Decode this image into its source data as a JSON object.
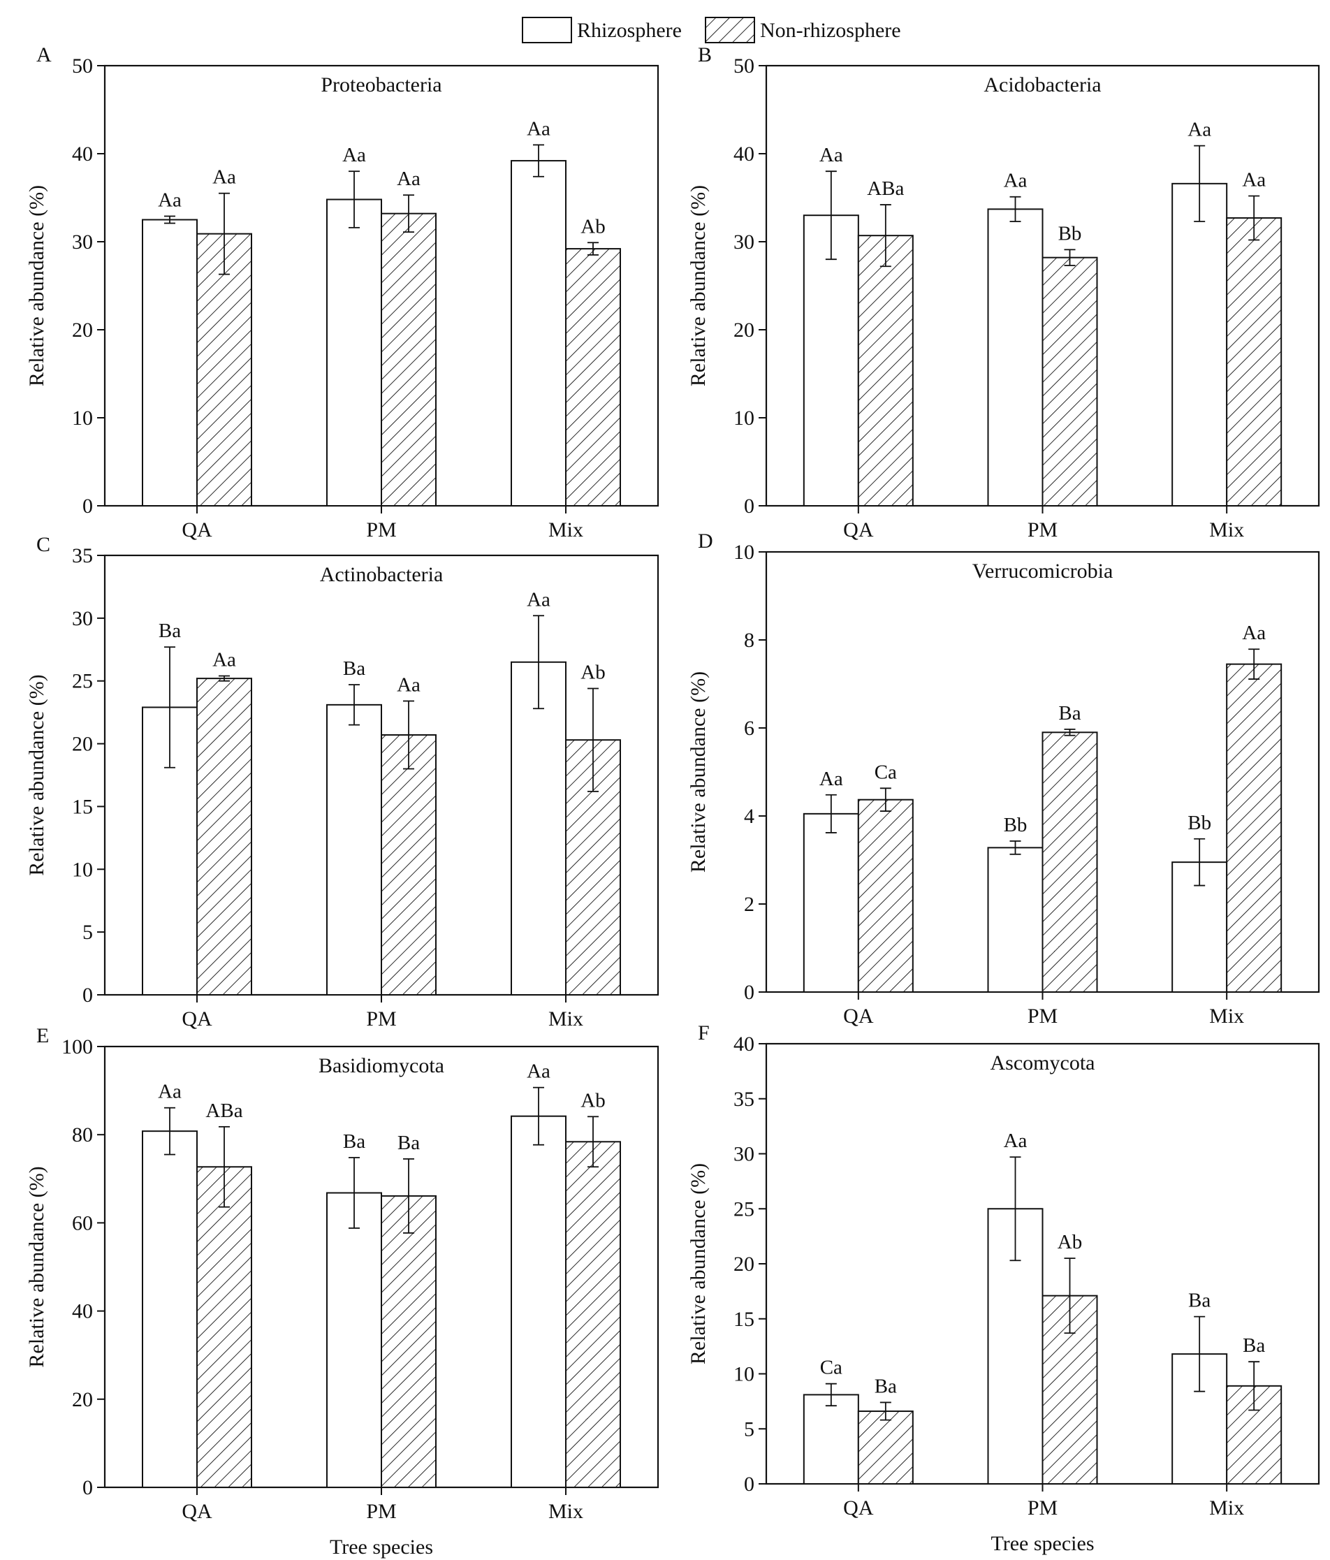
{
  "legend": {
    "rhizosphere": "Rhizosphere",
    "non_rhizosphere": "Non-rhizosphere"
  },
  "shared_xlabel": "Tree species",
  "colors": {
    "line": "#111111",
    "rhizosphere_fill": "#ffffff",
    "hatch": "#111111"
  },
  "chart_data": [
    {
      "panel": "A",
      "type": "bar",
      "title": "Proteobacteria",
      "ylabel": "Relative abundance (%)",
      "xlabel": "",
      "ylim": [
        0,
        50
      ],
      "yticks": [
        0,
        10,
        20,
        30,
        40,
        50
      ],
      "categories": [
        "QA",
        "PM",
        "Mix"
      ],
      "series": [
        {
          "name": "Rhizosphere",
          "values": [
            32.5,
            34.8,
            39.2
          ],
          "errors": [
            0.4,
            3.2,
            1.8
          ],
          "labels": [
            "Aa",
            "Aa",
            "Aa"
          ]
        },
        {
          "name": "Non-rhizosphere",
          "values": [
            30.9,
            33.2,
            29.2
          ],
          "errors": [
            4.6,
            2.1,
            0.7
          ],
          "labels": [
            "Aa",
            "Aa",
            "Ab"
          ]
        }
      ]
    },
    {
      "panel": "B",
      "type": "bar",
      "title": "Acidobacteria",
      "ylabel": "Relative abundance (%)",
      "xlabel": "",
      "ylim": [
        0,
        50
      ],
      "yticks": [
        0,
        10,
        20,
        30,
        40,
        50
      ],
      "categories": [
        "QA",
        "PM",
        "Mix"
      ],
      "series": [
        {
          "name": "Rhizosphere",
          "values": [
            33.0,
            33.7,
            36.6
          ],
          "errors": [
            5.0,
            1.4,
            4.3
          ],
          "labels": [
            "Aa",
            "Aa",
            "Aa"
          ]
        },
        {
          "name": "Non-rhizosphere",
          "values": [
            30.7,
            28.2,
            32.7
          ],
          "errors": [
            3.5,
            0.9,
            2.5
          ],
          "labels": [
            "ABa",
            "Bb",
            "Aa"
          ]
        }
      ]
    },
    {
      "panel": "C",
      "type": "bar",
      "title": "Actinobacteria",
      "ylabel": "Relative abundance (%)",
      "xlabel": "",
      "ylim": [
        0,
        35
      ],
      "yticks": [
        0,
        5,
        10,
        15,
        20,
        25,
        30,
        35
      ],
      "categories": [
        "QA",
        "PM",
        "Mix"
      ],
      "series": [
        {
          "name": "Rhizosphere",
          "values": [
            22.9,
            23.1,
            26.5
          ],
          "errors": [
            4.8,
            1.6,
            3.7
          ],
          "labels": [
            "Ba",
            "Ba",
            "Aa"
          ]
        },
        {
          "name": "Non-rhizosphere",
          "values": [
            25.2,
            20.7,
            20.3
          ],
          "errors": [
            0.2,
            2.7,
            4.1
          ],
          "labels": [
            "Aa",
            "Aa",
            "Ab"
          ]
        }
      ]
    },
    {
      "panel": "D",
      "type": "bar",
      "title": "Verrucomicrobia",
      "ylabel": "Relative abundance (%)",
      "xlabel": "",
      "ylim": [
        0,
        10
      ],
      "yticks": [
        0,
        2,
        4,
        6,
        8,
        10
      ],
      "categories": [
        "QA",
        "PM",
        "Mix"
      ],
      "series": [
        {
          "name": "Rhizosphere",
          "values": [
            4.05,
            3.28,
            2.95
          ],
          "errors": [
            0.43,
            0.15,
            0.53
          ],
          "labels": [
            "Aa",
            "Bb",
            "Bb"
          ]
        },
        {
          "name": "Non-rhizosphere",
          "values": [
            4.37,
            5.9,
            7.45
          ],
          "errors": [
            0.26,
            0.07,
            0.34
          ],
          "labels": [
            "Ca",
            "Ba",
            "Aa"
          ]
        }
      ]
    },
    {
      "panel": "E",
      "type": "bar",
      "title": "Basidiomycota",
      "ylabel": "Relative abundance (%)",
      "xlabel": "Tree species",
      "ylim": [
        0,
        100
      ],
      "yticks": [
        0,
        20,
        40,
        60,
        80,
        100
      ],
      "categories": [
        "QA",
        "PM",
        "Mix"
      ],
      "series": [
        {
          "name": "Rhizosphere",
          "values": [
            80.8,
            66.8,
            84.2
          ],
          "errors": [
            5.3,
            8.0,
            6.5
          ],
          "labels": [
            "Aa",
            "Ba",
            "Aa"
          ]
        },
        {
          "name": "Non-rhizosphere",
          "values": [
            72.7,
            66.1,
            78.4
          ],
          "errors": [
            9.1,
            8.4,
            5.7
          ],
          "labels": [
            "ABa",
            "Ba",
            "Ab"
          ]
        }
      ]
    },
    {
      "panel": "F",
      "type": "bar",
      "title": "Ascomycota",
      "ylabel": "Relative abundance (%)",
      "xlabel": "Tree species",
      "ylim": [
        0,
        40
      ],
      "yticks": [
        0,
        5,
        10,
        15,
        20,
        25,
        30,
        35,
        40
      ],
      "categories": [
        "QA",
        "PM",
        "Mix"
      ],
      "series": [
        {
          "name": "Rhizosphere",
          "values": [
            8.1,
            25.0,
            11.8
          ],
          "errors": [
            1.0,
            4.7,
            3.4
          ],
          "labels": [
            "Ca",
            "Aa",
            "Ba"
          ]
        },
        {
          "name": "Non-rhizosphere",
          "values": [
            6.6,
            17.1,
            8.9
          ],
          "errors": [
            0.8,
            3.4,
            2.2
          ],
          "labels": [
            "Ba",
            "Ab",
            "Ba"
          ]
        }
      ]
    }
  ]
}
